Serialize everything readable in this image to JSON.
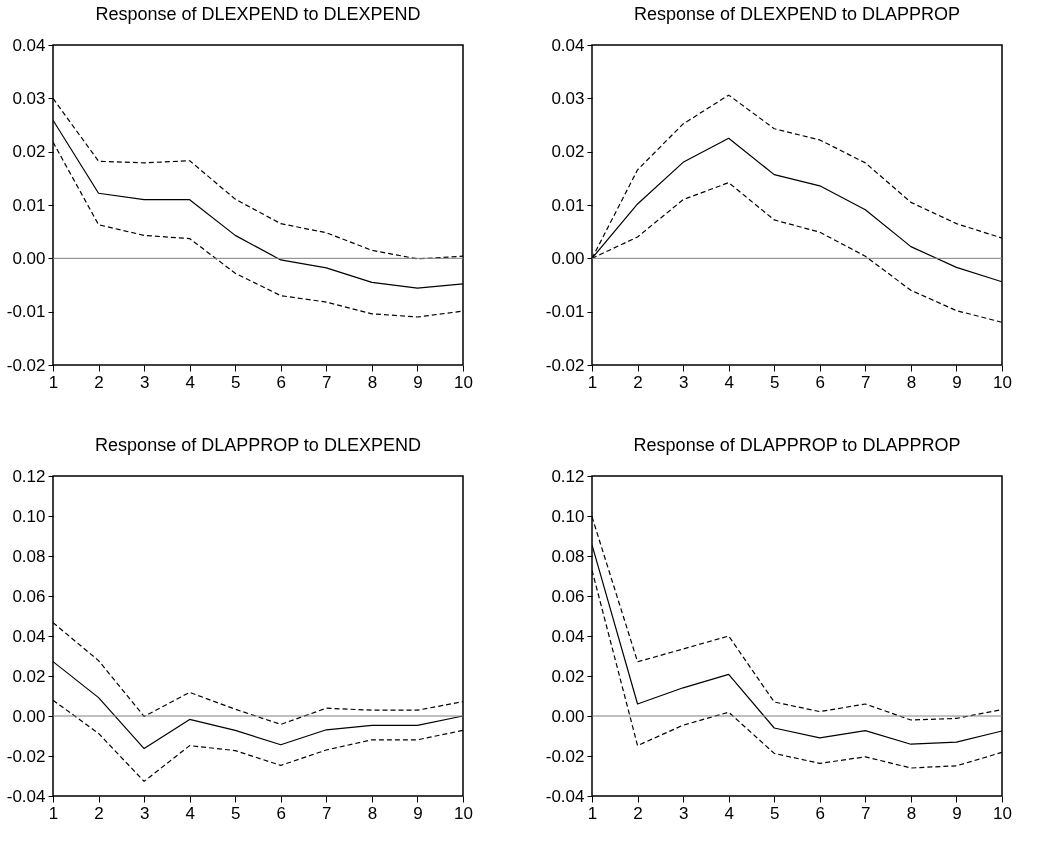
{
  "chart_data": [
    {
      "type": "line",
      "title": "Response of DLEXPEND to DLEXPEND",
      "x": [
        1,
        2,
        3,
        4,
        5,
        6,
        7,
        8,
        9,
        10
      ],
      "xlim": [
        1,
        10
      ],
      "xticks": [
        1,
        2,
        3,
        4,
        5,
        6,
        7,
        8,
        9,
        10
      ],
      "ylim": [
        -0.02,
        0.04
      ],
      "yticks": [
        {
          "value": -0.02,
          "label": "-0.02"
        },
        {
          "value": -0.01,
          "label": "-0.01"
        },
        {
          "value": 0,
          "label": "0.00"
        },
        {
          "value": 0.01,
          "label": "0.01"
        },
        {
          "value": 0.02,
          "label": "0.02"
        },
        {
          "value": 0.03,
          "label": "0.03"
        },
        {
          "value": 0.04,
          "label": "0.04"
        }
      ],
      "grid": false,
      "ref_lines": [
        {
          "axis": "y",
          "value": 0,
          "color": "#808080"
        }
      ],
      "series": [
        {
          "color": "#000000",
          "line_style": "solid",
          "values": [
            0.0259,
            0.0122,
            0.011,
            0.011,
            0.0043,
            -0.0003,
            -0.0018,
            -0.0045,
            -0.0056,
            -0.0048
          ]
        },
        {
          "color": "#000000",
          "line_style": "dashed",
          "values": [
            0.03,
            0.0182,
            0.0179,
            0.0183,
            0.0111,
            0.0065,
            0.0048,
            0.0015,
            -0.0001,
            0.0004
          ]
        },
        {
          "color": "#000000",
          "line_style": "dashed",
          "values": [
            0.0218,
            0.0063,
            0.0043,
            0.0037,
            -0.0028,
            -0.007,
            -0.0082,
            -0.0104,
            -0.011,
            -0.0099
          ]
        }
      ]
    },
    {
      "type": "line",
      "title": "Response of DLEXPEND to DLAPPROP",
      "x": [
        1,
        2,
        3,
        4,
        5,
        6,
        7,
        8,
        9,
        10
      ],
      "xlim": [
        1,
        10
      ],
      "xticks": [
        1,
        2,
        3,
        4,
        5,
        6,
        7,
        8,
        9,
        10
      ],
      "ylim": [
        -0.02,
        0.04
      ],
      "yticks": [
        {
          "value": -0.02,
          "label": "-0.02"
        },
        {
          "value": -0.01,
          "label": "-0.01"
        },
        {
          "value": 0,
          "label": "0.00"
        },
        {
          "value": 0.01,
          "label": "0.01"
        },
        {
          "value": 0.02,
          "label": "0.02"
        },
        {
          "value": 0.03,
          "label": "0.03"
        },
        {
          "value": 0.04,
          "label": "0.04"
        }
      ],
      "grid": false,
      "ref_lines": [
        {
          "axis": "y",
          "value": 0,
          "color": "#808080"
        }
      ],
      "series": [
        {
          "color": "#000000",
          "line_style": "solid",
          "values": [
            0,
            0.0102,
            0.018,
            0.0225,
            0.0157,
            0.0136,
            0.0091,
            0.0022,
            -0.0017,
            -0.0044
          ]
        },
        {
          "color": "#000000",
          "line_style": "dashed",
          "values": [
            0,
            0.0166,
            0.0252,
            0.0306,
            0.0243,
            0.0222,
            0.0179,
            0.0105,
            0.0065,
            0.0038
          ]
        },
        {
          "color": "#000000",
          "line_style": "dashed",
          "values": [
            0,
            0.004,
            0.011,
            0.0142,
            0.0072,
            0.0049,
            0.0004,
            -0.006,
            -0.0098,
            -0.012
          ]
        }
      ]
    },
    {
      "type": "line",
      "title": "Response of DLAPPROP to DLEXPEND",
      "x": [
        1,
        2,
        3,
        4,
        5,
        6,
        7,
        8,
        9,
        10
      ],
      "xlim": [
        1,
        10
      ],
      "xticks": [
        1,
        2,
        3,
        4,
        5,
        6,
        7,
        8,
        9,
        10
      ],
      "ylim": [
        -0.04,
        0.12
      ],
      "yticks": [
        {
          "value": -0.04,
          "label": "-0.04"
        },
        {
          "value": -0.02,
          "label": "-0.02"
        },
        {
          "value": 0,
          "label": "0.00"
        },
        {
          "value": 0.02,
          "label": "0.02"
        },
        {
          "value": 0.04,
          "label": "0.04"
        },
        {
          "value": 0.06,
          "label": "0.06"
        },
        {
          "value": 0.08,
          "label": "0.08"
        },
        {
          "value": 0.1,
          "label": "0.10"
        },
        {
          "value": 0.12,
          "label": "0.12"
        }
      ],
      "grid": false,
      "ref_lines": [
        {
          "axis": "y",
          "value": 0,
          "color": "#808080"
        }
      ],
      "series": [
        {
          "color": "#000000",
          "line_style": "solid",
          "values": [
            0.0272,
            0.0092,
            -0.0163,
            -0.0017,
            -0.0072,
            -0.0144,
            -0.0069,
            -0.0047,
            -0.0047,
            0
          ]
        },
        {
          "color": "#000000",
          "line_style": "dashed",
          "values": [
            0.0467,
            0.0277,
            -0.0002,
            0.0118,
            0.0034,
            -0.0042,
            0.0039,
            0.0029,
            0.0029,
            0.0072
          ]
        },
        {
          "color": "#000000",
          "line_style": "dashed",
          "values": [
            0.0079,
            -0.0087,
            -0.0327,
            -0.0148,
            -0.0173,
            -0.0247,
            -0.017,
            -0.0119,
            -0.0119,
            -0.0072
          ]
        }
      ]
    },
    {
      "type": "line",
      "title": "Response of DLAPPROP to DLAPPROP",
      "x": [
        1,
        2,
        3,
        4,
        5,
        6,
        7,
        8,
        9,
        10
      ],
      "xlim": [
        1,
        10
      ],
      "xticks": [
        1,
        2,
        3,
        4,
        5,
        6,
        7,
        8,
        9,
        10
      ],
      "ylim": [
        -0.04,
        0.12
      ],
      "yticks": [
        {
          "value": -0.04,
          "label": "-0.04"
        },
        {
          "value": -0.02,
          "label": "-0.02"
        },
        {
          "value": 0,
          "label": "0.00"
        },
        {
          "value": 0.02,
          "label": "0.02"
        },
        {
          "value": 0.04,
          "label": "0.04"
        },
        {
          "value": 0.06,
          "label": "0.06"
        },
        {
          "value": 0.08,
          "label": "0.08"
        },
        {
          "value": 0.1,
          "label": "0.10"
        },
        {
          "value": 0.12,
          "label": "0.12"
        }
      ],
      "grid": false,
      "ref_lines": [
        {
          "axis": "y",
          "value": 0,
          "color": "#808080"
        }
      ],
      "series": [
        {
          "color": "#000000",
          "line_style": "solid",
          "values": [
            0.0856,
            0.006,
            0.0141,
            0.0208,
            -0.006,
            -0.0109,
            -0.0073,
            -0.0141,
            -0.0131,
            -0.0075
          ]
        },
        {
          "color": "#000000",
          "line_style": "dashed",
          "values": [
            0.0996,
            0.0271,
            0.0335,
            0.04,
            0.007,
            0.0022,
            0.006,
            -0.002,
            -0.0012,
            0.0032
          ]
        },
        {
          "color": "#000000",
          "line_style": "dashed",
          "values": [
            0.0729,
            -0.0148,
            -0.0046,
            0.0019,
            -0.0187,
            -0.0237,
            -0.0204,
            -0.026,
            -0.0249,
            -0.0182
          ]
        }
      ]
    }
  ]
}
